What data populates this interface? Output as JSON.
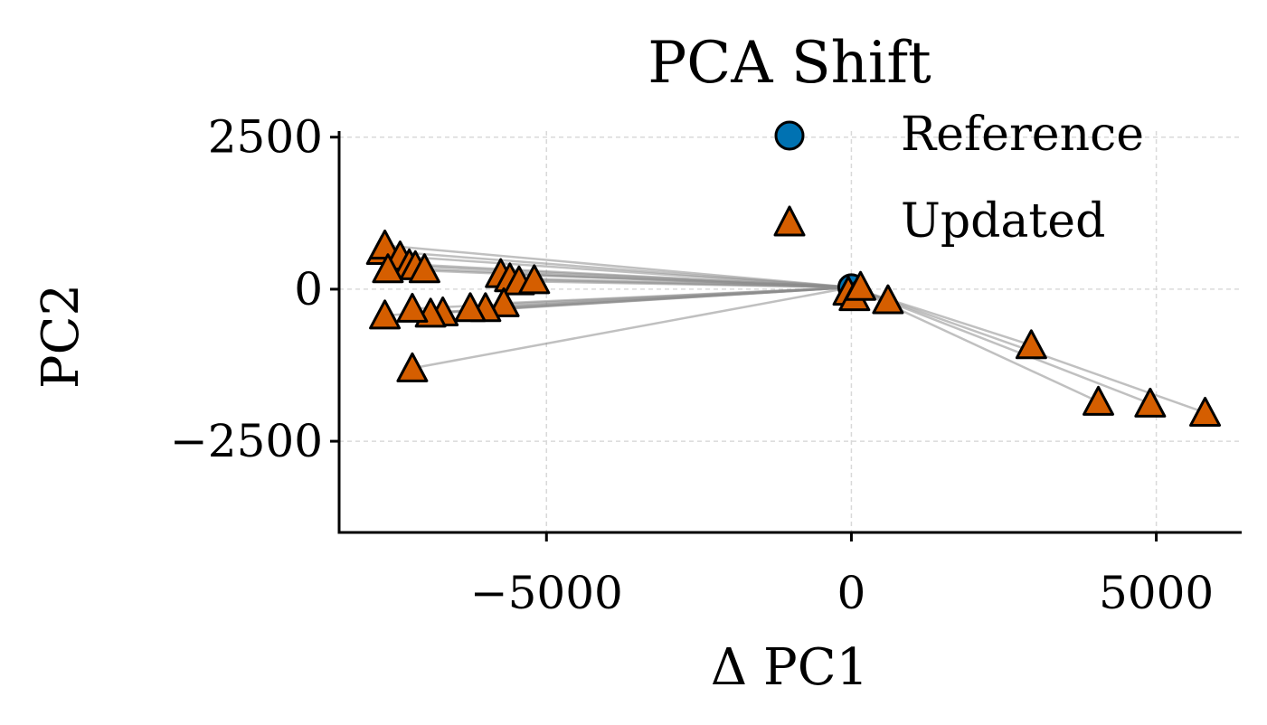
{
  "chart_data": {
    "type": "scatter",
    "title": "PCA Shift",
    "xlabel": "Δ PC1",
    "ylabel": "PC2",
    "xlim": [
      -8400,
      6400
    ],
    "ylim": [
      -4000,
      2600
    ],
    "xticks": [
      -5000,
      0,
      5000
    ],
    "xtick_labels": [
      "−5000",
      "0",
      "5000"
    ],
    "yticks": [
      2500,
      0,
      -2500
    ],
    "ytick_labels": [
      "2500",
      "0",
      "−2500"
    ],
    "grid": true,
    "legend_position": "upper-right",
    "series": [
      {
        "name": "Reference",
        "marker": "circle",
        "color": "#0072b2",
        "points": [
          [
            0,
            30
          ]
        ]
      },
      {
        "name": "Updated",
        "marker": "triangle",
        "color": "#d55e00",
        "points": [
          [
            -7700,
            630
          ],
          [
            -7650,
            720
          ],
          [
            -7400,
            540
          ],
          [
            -7250,
            410
          ],
          [
            -7150,
            380
          ],
          [
            -7000,
            330
          ],
          [
            -7600,
            330
          ],
          [
            -5750,
            250
          ],
          [
            -5600,
            180
          ],
          [
            -5450,
            130
          ],
          [
            -5200,
            150
          ],
          [
            -5700,
            -230
          ],
          [
            -6000,
            -310
          ],
          [
            -6250,
            -310
          ],
          [
            -6700,
            -380
          ],
          [
            -6900,
            -400
          ],
          [
            -7200,
            -320
          ],
          [
            -7650,
            -430
          ],
          [
            -7200,
            -1300
          ],
          [
            -50,
            -40
          ],
          [
            50,
            -130
          ],
          [
            150,
            40
          ],
          [
            600,
            -180
          ],
          [
            2950,
            -920
          ],
          [
            4050,
            -1850
          ],
          [
            4900,
            -1880
          ],
          [
            5800,
            -2030
          ]
        ]
      }
    ]
  }
}
